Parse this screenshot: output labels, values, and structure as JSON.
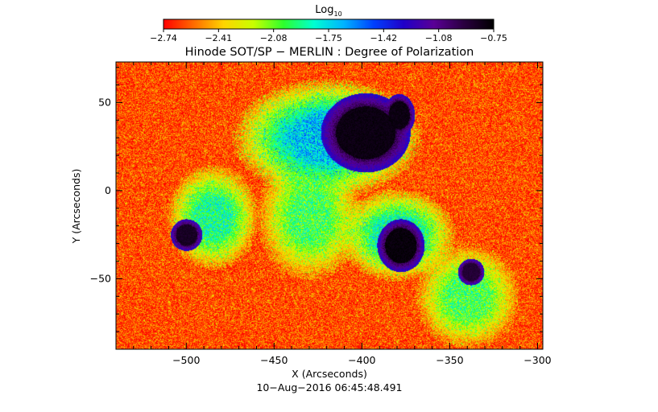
{
  "colorbar": {
    "label_main": "Log",
    "label_sub": "10",
    "ticks": [
      "-2.74",
      "-2.41",
      "-2.08",
      "-1.75",
      "-1.42",
      "-1.08",
      "-0.75"
    ],
    "colors": [
      "#ff0000",
      "#ff6a00",
      "#ffd400",
      "#c8ff00",
      "#2dff2d",
      "#00ffd0",
      "#00b4ff",
      "#0040ff",
      "#2000c8",
      "#5a0096",
      "#2a0040",
      "#000000"
    ]
  },
  "chart_data": {
    "type": "heatmap",
    "title": "Hinode SOT/SP − MERLIN : Degree of Polarization",
    "xlabel": "X (Arcseconds)",
    "ylabel": "Y (Arcseconds)",
    "xlim": [
      -540,
      -297
    ],
    "ylim": [
      -90,
      73
    ],
    "xticks": [
      -500,
      -450,
      -400,
      -350,
      -300
    ],
    "xtick_labels": [
      "−500",
      "−450",
      "−400",
      "−350",
      "−300"
    ],
    "yticks": [
      -50,
      0,
      50
    ],
    "ytick_labels": [
      "−50",
      "0",
      "50"
    ],
    "color_scale": "log10",
    "color_range": [
      -2.74,
      -0.75
    ],
    "features": [
      {
        "kind": "sunspot",
        "x": -398,
        "y": 33,
        "rx": 17,
        "ry": 15,
        "value": -0.8
      },
      {
        "kind": "sunspot",
        "x": -379,
        "y": 43,
        "rx": 6,
        "ry": 8,
        "value": -0.8
      },
      {
        "kind": "sunspot",
        "x": -378,
        "y": -31,
        "rx": 9,
        "ry": 10,
        "value": -0.78
      },
      {
        "kind": "pore",
        "x": -500,
        "y": -25,
        "rx": 6,
        "ry": 6,
        "value": -0.85
      },
      {
        "kind": "pore",
        "x": -338,
        "y": -46,
        "rx": 5,
        "ry": 5,
        "value": -0.9
      },
      {
        "kind": "plage",
        "x": -420,
        "y": 30,
        "rx": 45,
        "ry": 28,
        "value": -1.7
      },
      {
        "kind": "plage",
        "x": -485,
        "y": -15,
        "rx": 22,
        "ry": 25,
        "value": -1.9
      },
      {
        "kind": "plage",
        "x": -380,
        "y": -25,
        "rx": 28,
        "ry": 22,
        "value": -1.85
      },
      {
        "kind": "plage",
        "x": -340,
        "y": -60,
        "rx": 25,
        "ry": 25,
        "value": -2.0
      },
      {
        "kind": "plage",
        "x": -430,
        "y": -15,
        "rx": 25,
        "ry": 30,
        "value": -2.0
      }
    ]
  },
  "timestamp": "10−Aug−2016 06:45:48.491"
}
